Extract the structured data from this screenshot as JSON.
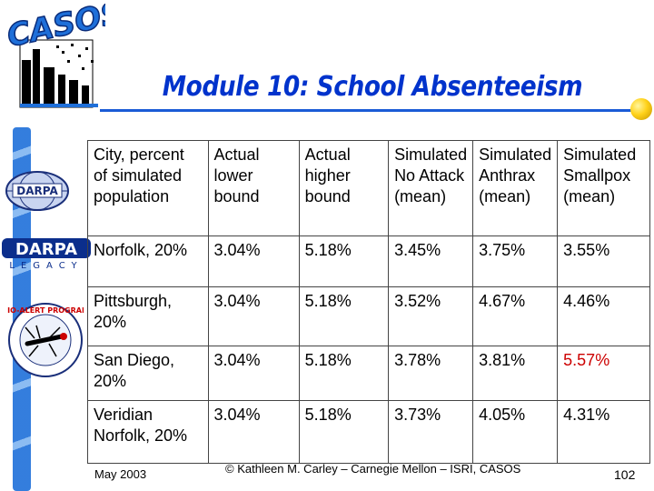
{
  "title": "Module 10: School Absenteeism",
  "logos": {
    "casos": "CASOS",
    "darpa_globe": "DARPA",
    "darpa_legacy": "DARPA",
    "darpa_legacy_sub": "LEGACY",
    "bio_alert": "BIO-ALERT PROGRAM"
  },
  "table": {
    "headers": [
      "City, percent of simulated population",
      "Actual lower bound",
      "Actual higher bound",
      "Simulated No Attack (mean)",
      "Simulated Anthrax (mean)",
      "Simulated Smallpox (mean)"
    ],
    "rows": [
      [
        "Norfolk, 20%",
        "3.04%",
        "5.18%",
        "3.45%",
        "3.75%",
        "3.55%"
      ],
      [
        "Pittsburgh, 20%",
        "3.04%",
        "5.18%",
        "3.52%",
        "4.67%",
        "4.46%"
      ],
      [
        "San Diego, 20%",
        "3.04%",
        "5.18%",
        "3.78%",
        "3.81%",
        "5.57%"
      ],
      [
        "Veridian Norfolk, 20%",
        "3.04%",
        "5.18%",
        "3.73%",
        "4.05%",
        "4.31%"
      ]
    ]
  },
  "footer": {
    "date": "May 2003",
    "copyright": "© Kathleen M. Carley – Carnegie Mellon – ISRI, CASOS",
    "page": "102"
  },
  "colors": {
    "title": "#0033cc",
    "accent_bar": "#1a5bd6",
    "highlight": "#cc0000"
  }
}
